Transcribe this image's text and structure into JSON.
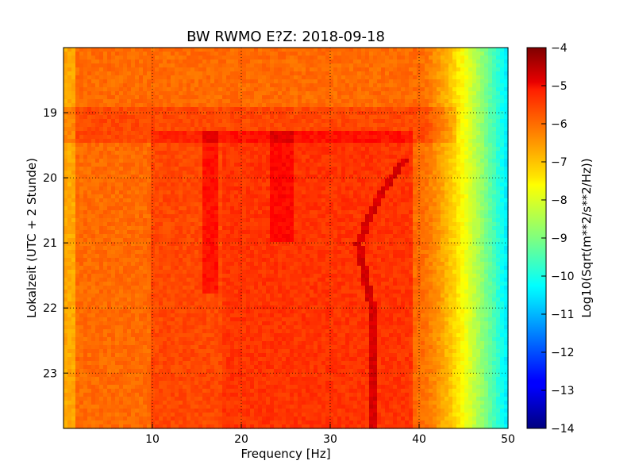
{
  "chart_data": {
    "type": "heatmap",
    "title": "BW RWMO E?Z: 2018-09-18",
    "xlabel": "Frequency [Hz]",
    "ylabel": "Lokalzeit (UTC + 2 Stunde)",
    "xlim": [
      0,
      50
    ],
    "ylim": [
      23.85,
      18.0
    ],
    "x_ticks": [
      10,
      20,
      30,
      40,
      50
    ],
    "y_ticks": [
      19,
      20,
      21,
      22,
      23
    ],
    "grid": true,
    "colormap": "jet",
    "colorbar": {
      "label": "Log10(Sqrt(m**2/s**2/Hz))",
      "range": [
        -14,
        -4
      ],
      "ticks": [
        -4,
        -5,
        -6,
        -7,
        -8,
        -9,
        -10,
        -11,
        -12,
        -13,
        -14
      ]
    },
    "features": [
      {
        "label": "background level",
        "value": -6.3
      },
      {
        "label": "high-frequency roll-off start (Hz)",
        "value": 40
      },
      {
        "label": "level at 50 Hz",
        "value": -10.5
      },
      {
        "label": "noise band start hour",
        "value": 18.9
      },
      {
        "label": "noise band end hour",
        "value": 19.45
      },
      {
        "label": "streak 1 frequency (Hz)",
        "value": 16.5,
        "from_hour": 19.3,
        "to_hour": 21.8
      },
      {
        "label": "streak 2 frequency (Hz)",
        "value": 24.5,
        "from_hour": 19.3,
        "to_hour": 21.0
      },
      {
        "label": "drifting line path (Hz)",
        "points": [
          [
            19.7,
            38.5
          ],
          [
            20.3,
            35.5
          ],
          [
            21.0,
            33.2
          ],
          [
            21.6,
            34.0
          ],
          [
            22.0,
            34.8
          ],
          [
            22.8,
            34.6
          ],
          [
            23.85,
            35.0
          ]
        ]
      }
    ]
  }
}
